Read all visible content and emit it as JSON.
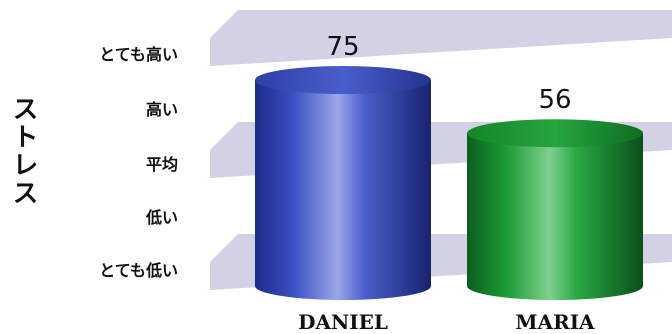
{
  "chart_data": {
    "type": "bar",
    "style": "3d-cylinder",
    "title": "",
    "ylabel": "ストレス",
    "xlabel": "",
    "ylim": [
      0,
      100
    ],
    "y_tick_labels": [
      "とても低い",
      "低い",
      "平均",
      "高い",
      "とても高い"
    ],
    "categories": [
      "DANIEL",
      "MARIA"
    ],
    "values": [
      75,
      56
    ],
    "bar_colors": [
      "#2b3fb0",
      "#14892a"
    ],
    "band_color": "#d3d1e4",
    "grid": false,
    "legend": "none"
  }
}
